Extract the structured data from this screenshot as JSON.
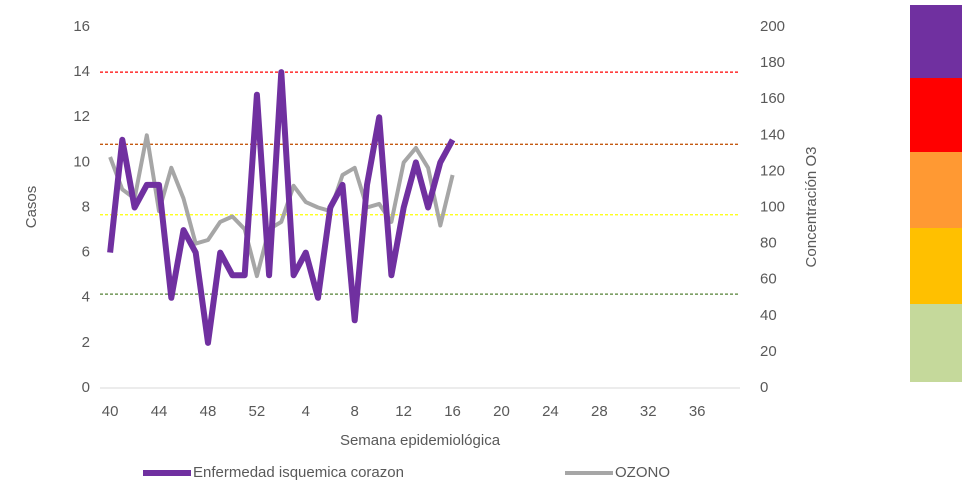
{
  "chart_data": {
    "type": "line",
    "x_label": "Semana epidemiológica",
    "y_label": "Casos",
    "y2_label": "Concentración O3",
    "categories": [
      "40",
      null,
      null,
      null,
      "44",
      null,
      null,
      null,
      "48",
      null,
      null,
      null,
      "52",
      null,
      null,
      null,
      "4",
      null,
      null,
      null,
      "8",
      null,
      null,
      null,
      "12",
      null,
      null,
      null,
      "16",
      null,
      null,
      null,
      "20",
      null,
      null,
      null,
      "24",
      null,
      null,
      null,
      "28",
      null,
      null,
      null,
      "32",
      null,
      null,
      null,
      "36",
      null,
      null,
      null
    ],
    "series": [
      {
        "name": "Enfermedad isquemica corazon",
        "color": "#7030a0",
        "axis": "y",
        "values": [
          6,
          11,
          8,
          9,
          9,
          4,
          7,
          6,
          2,
          6,
          5,
          5,
          13,
          5,
          14,
          5,
          6,
          4,
          8,
          9,
          3,
          9,
          12,
          5,
          8,
          10,
          8,
          10,
          11,
          null,
          null,
          null,
          null,
          null,
          null,
          null,
          null,
          null,
          null,
          null,
          null,
          null,
          null,
          null,
          null,
          null,
          null,
          null,
          null,
          null,
          null,
          null
        ]
      },
      {
        "name": "OZONO",
        "color": "#a6a6a6",
        "axis": "y2",
        "values": [
          128,
          110,
          105,
          140,
          98,
          122,
          105,
          80,
          82,
          92,
          95,
          88,
          62,
          88,
          92,
          112,
          103,
          100,
          98,
          118,
          122,
          100,
          102,
          92,
          125,
          133,
          122,
          90,
          118,
          null,
          null,
          null,
          null,
          null,
          null,
          null,
          null,
          null,
          null,
          null,
          null,
          null,
          null,
          null,
          null,
          null,
          null,
          null,
          null,
          null,
          null,
          null
        ]
      }
    ],
    "reference_lines": [
      {
        "value": 175,
        "color": "#ff0000"
      },
      {
        "value": 135,
        "color": "#c55a11"
      },
      {
        "value": 96,
        "color": "#ffff00"
      },
      {
        "value": 52,
        "color": "#548235"
      }
    ],
    "ylim": [
      0,
      16
    ],
    "yticks": [
      0,
      2,
      4,
      6,
      8,
      10,
      12,
      14,
      16
    ],
    "y2lim": [
      0,
      200
    ],
    "y2ticks": [
      0,
      20,
      40,
      60,
      80,
      100,
      120,
      140,
      160,
      180,
      200
    ],
    "grid": false
  }
}
